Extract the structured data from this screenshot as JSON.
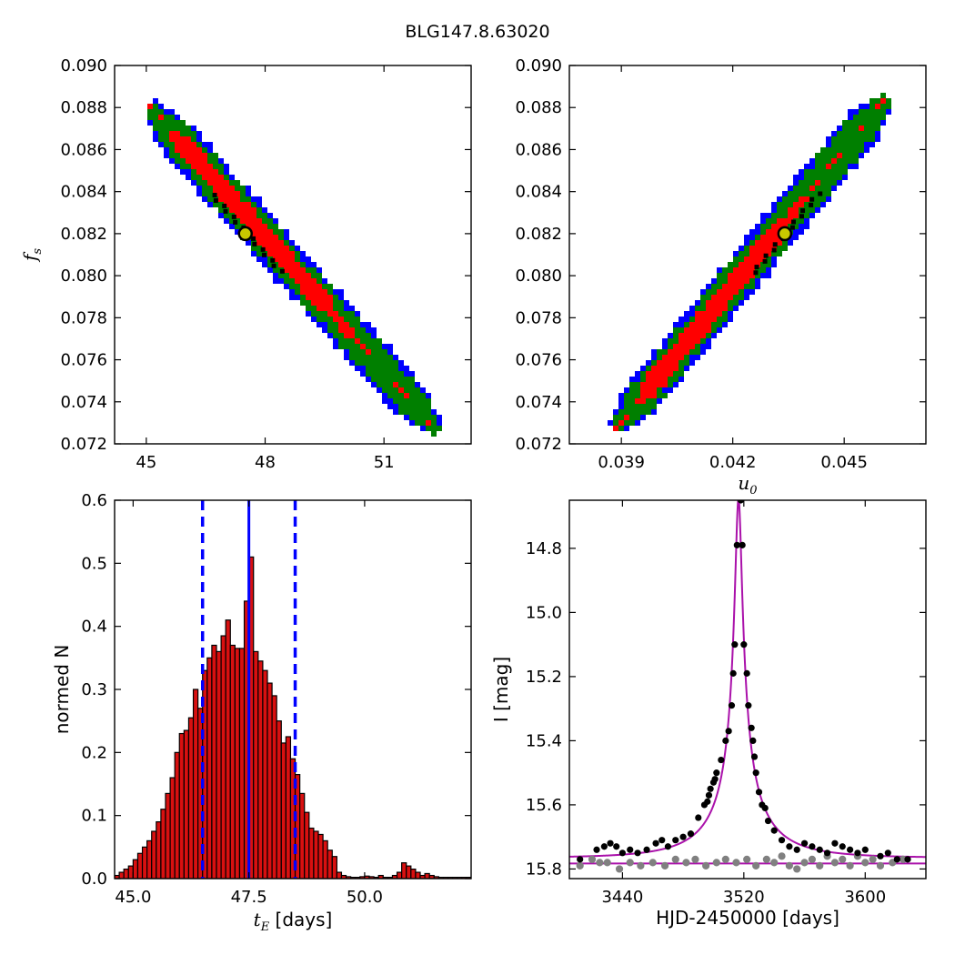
{
  "figure": {
    "title": "BLG147.8.63020"
  },
  "colors": {
    "blue": "#0000ff",
    "green": "#007f00",
    "red": "#ff0000",
    "black": "#000000",
    "yellow": "#c8c800",
    "hist_fill": "#d81010",
    "magenta": "#aa11aa",
    "gray": "#808080"
  },
  "chart_data": [
    {
      "id": "tE-fs",
      "type": "heatmap",
      "title": "",
      "xlabel": "",
      "ylabel": "f_s",
      "xlim": [
        44.2,
        53.2
      ],
      "ylim": [
        0.072,
        0.09
      ],
      "xticks": [
        "45",
        "48",
        "51"
      ],
      "xtick_values": [
        45,
        48,
        51
      ],
      "yticks": [
        "0.072",
        "0.074",
        "0.076",
        "0.078",
        "0.080",
        "0.082",
        "0.084",
        "0.086",
        "0.088",
        "0.090"
      ],
      "ytick_values": [
        0.072,
        0.074,
        0.076,
        0.078,
        0.08,
        0.082,
        0.084,
        0.086,
        0.088,
        0.09
      ],
      "confidence_levels": [
        "blue",
        "green",
        "red",
        "black"
      ],
      "ridge": {
        "x0": 45.1,
        "y0": 0.088,
        "x1": 52.3,
        "y1": 0.0727
      },
      "best_fit": {
        "x": 47.5,
        "y": 0.082
      }
    },
    {
      "id": "u0-fs",
      "type": "heatmap",
      "title": "",
      "xlabel": "u_0",
      "ylabel": "",
      "xlim": [
        0.0376,
        0.0472
      ],
      "ylim": [
        0.072,
        0.09
      ],
      "xticks": [
        "0.039",
        "0.042",
        "0.045"
      ],
      "xtick_values": [
        0.039,
        0.042,
        0.045
      ],
      "yticks": [
        "0.072",
        "0.074",
        "0.076",
        "0.078",
        "0.080",
        "0.082",
        "0.084",
        "0.086",
        "0.088",
        "0.090"
      ],
      "ytick_values": [
        0.072,
        0.074,
        0.076,
        0.078,
        0.08,
        0.082,
        0.084,
        0.086,
        0.088,
        0.09
      ],
      "confidence_levels": [
        "blue",
        "green",
        "red",
        "black"
      ],
      "ridge": {
        "x0": 0.0389,
        "y0": 0.0728,
        "x1": 0.0461,
        "y1": 0.0884
      },
      "best_fit": {
        "x": 0.0434,
        "y": 0.082
      }
    },
    {
      "id": "tE-hist",
      "type": "bar",
      "title": "",
      "xlabel": "t_E [days]",
      "ylabel": "normed N",
      "xlim": [
        44.6,
        52.3
      ],
      "ylim": [
        0.0,
        0.6
      ],
      "xticks": [
        "45.0",
        "47.5",
        "50.0"
      ],
      "xtick_values": [
        45.0,
        47.5,
        50.0
      ],
      "yticks": [
        "0.0",
        "0.1",
        "0.2",
        "0.3",
        "0.4",
        "0.5",
        "0.6"
      ],
      "ytick_values": [
        0.0,
        0.1,
        0.2,
        0.3,
        0.4,
        0.5,
        0.6
      ],
      "bin_start": 44.6,
      "bin_width": 0.1,
      "values": [
        0.005,
        0.01,
        0.015,
        0.02,
        0.03,
        0.04,
        0.05,
        0.06,
        0.075,
        0.09,
        0.11,
        0.135,
        0.16,
        0.2,
        0.23,
        0.235,
        0.255,
        0.3,
        0.27,
        0.33,
        0.35,
        0.37,
        0.36,
        0.385,
        0.41,
        0.37,
        0.365,
        0.365,
        0.44,
        0.51,
        0.36,
        0.345,
        0.33,
        0.31,
        0.29,
        0.25,
        0.215,
        0.225,
        0.19,
        0.165,
        0.135,
        0.105,
        0.08,
        0.075,
        0.07,
        0.06,
        0.045,
        0.035,
        0.01,
        0.005,
        0.003,
        0.002,
        0.002,
        0.003,
        0.004,
        0.003,
        0.002,
        0.005,
        0.002,
        0.002,
        0.005,
        0.01,
        0.025,
        0.02,
        0.015,
        0.01,
        0.005,
        0.008,
        0.005,
        0.003,
        0.002,
        0.002,
        0.002,
        0.002,
        0.002,
        0.002,
        0.002
      ],
      "median": 47.5,
      "bounds": [
        46.5,
        48.5
      ]
    },
    {
      "id": "lightcurve",
      "type": "scatter",
      "title": "",
      "xlabel": "HJD-2450000 [days]",
      "ylabel": "I [mag]",
      "xlim": [
        3405,
        3640
      ],
      "ylim": [
        15.83,
        14.65
      ],
      "inverted_y": true,
      "xticks": [
        "3440",
        "3520",
        "3600"
      ],
      "xtick_values": [
        3440,
        3520,
        3600
      ],
      "yticks": [
        "14.8",
        "15.0",
        "15.2",
        "15.4",
        "15.6",
        "15.8"
      ],
      "ytick_values": [
        14.8,
        15.0,
        15.2,
        15.4,
        15.6,
        15.8
      ],
      "model": {
        "t0": 3516.5,
        "u0": 0.0434,
        "tE": 47.5,
        "fs": 0.082,
        "base": 15.765,
        "baseline_line": 15.783
      },
      "series": [
        {
          "kind": "observed",
          "x": [
            3412,
            3423,
            3428,
            3432,
            3436,
            3440,
            3445,
            3450,
            3456,
            3462,
            3466,
            3470,
            3475,
            3480,
            3485,
            3490,
            3494,
            3496,
            3497,
            3498,
            3500,
            3501,
            3502,
            3505,
            3508,
            3510,
            3512,
            3513,
            3514,
            3515.5,
            3518,
            3519,
            3520,
            3522,
            3523,
            3525,
            3526,
            3527,
            3528,
            3530,
            3532,
            3534,
            3536,
            3540,
            3545,
            3550,
            3555,
            3560,
            3565,
            3570,
            3575,
            3580,
            3585,
            3590,
            3595,
            3600,
            3610,
            3615,
            3621,
            3628
          ],
          "y": [
            15.77,
            15.74,
            15.73,
            15.72,
            15.73,
            15.75,
            15.74,
            15.75,
            15.74,
            15.72,
            15.71,
            15.73,
            15.71,
            15.7,
            15.69,
            15.64,
            15.6,
            15.59,
            15.57,
            15.55,
            15.53,
            15.52,
            15.5,
            15.46,
            15.4,
            15.37,
            15.29,
            15.19,
            15.1,
            14.79,
            14.65,
            14.79,
            15.1,
            15.19,
            15.29,
            15.36,
            15.4,
            15.45,
            15.5,
            15.56,
            15.6,
            15.61,
            15.65,
            15.68,
            15.71,
            15.73,
            15.74,
            15.72,
            15.73,
            15.74,
            15.75,
            15.72,
            15.73,
            15.74,
            15.75,
            15.74,
            15.76,
            15.75,
            15.77,
            15.77
          ]
        },
        {
          "kind": "residual",
          "x": [
            3412,
            3420,
            3425,
            3430,
            3438,
            3445,
            3452,
            3460,
            3468,
            3475,
            3482,
            3488,
            3495,
            3502,
            3508,
            3515,
            3522,
            3528,
            3535,
            3540,
            3545,
            3550,
            3555,
            3560,
            3565,
            3570,
            3575,
            3580,
            3585,
            3590,
            3595,
            3600,
            3605,
            3610,
            3618,
            3625
          ],
          "y": [
            15.79,
            15.77,
            15.78,
            15.78,
            15.8,
            15.78,
            15.79,
            15.78,
            15.79,
            15.77,
            15.78,
            15.77,
            15.79,
            15.78,
            15.77,
            15.78,
            15.77,
            15.79,
            15.77,
            15.78,
            15.76,
            15.79,
            15.8,
            15.78,
            15.77,
            15.79,
            15.76,
            15.78,
            15.77,
            15.79,
            15.76,
            15.78,
            15.77,
            15.79,
            15.78,
            15.77
          ]
        }
      ]
    }
  ]
}
